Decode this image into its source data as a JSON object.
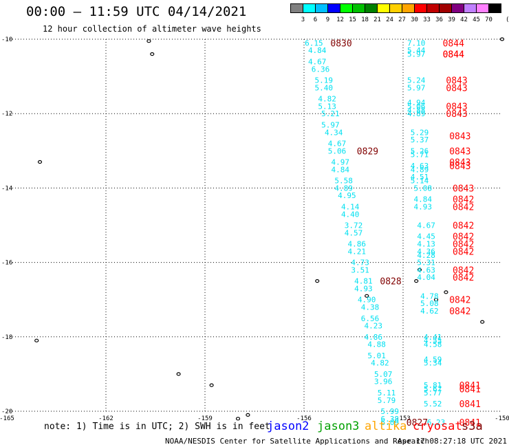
{
  "header": {
    "title": "00:00 – 11:59 UTC 04/14/2021",
    "subtitle": "12 hour collection of altimeter wave heights"
  },
  "legend": {
    "colors": [
      "#808080",
      "#00ffff",
      "#00bfff",
      "#0000ff",
      "#00ff00",
      "#00c000",
      "#008000",
      "#ffff00",
      "#ffd000",
      "#ffa500",
      "#ff0000",
      "#c00000",
      "#a00000",
      "#800080",
      "#c080ff",
      "#ff80ff",
      "#000000"
    ],
    "labels": [
      "3",
      "6",
      "9",
      "12",
      "15",
      "18",
      "21",
      "24",
      "27",
      "30",
      "33",
      "36",
      "39",
      "42",
      "45",
      "70"
    ],
    "unit": "(ft)"
  },
  "map": {
    "lon_labels": [
      "-165",
      "-162",
      "-159",
      "-156",
      "-153",
      "-150"
    ],
    "lat_labels": [
      "-10",
      "-12",
      "-14",
      "-16",
      "-18",
      "-20"
    ],
    "track_a": [
      {
        "lat": -10.1,
        "lon": -155.7,
        "swh": "6.15"
      },
      {
        "lat": -10.3,
        "lon": -155.6,
        "swh": "4.84"
      },
      {
        "lat": -10.6,
        "lon": -155.6,
        "swh": "4.67"
      },
      {
        "lat": -10.8,
        "lon": -155.5,
        "swh": "6.36"
      },
      {
        "lat": -11.1,
        "lon": -155.4,
        "swh": "5.19"
      },
      {
        "lat": -11.3,
        "lon": -155.4,
        "swh": "5.40"
      },
      {
        "lat": -11.6,
        "lon": -155.3,
        "swh": "4.82"
      },
      {
        "lat": -11.8,
        "lon": -155.3,
        "swh": "5.13"
      },
      {
        "lat": -12.0,
        "lon": -155.2,
        "swh": "5.21"
      },
      {
        "lat": -12.3,
        "lon": -155.2,
        "swh": "5.97"
      },
      {
        "lat": -12.5,
        "lon": -155.1,
        "swh": "4.34"
      },
      {
        "lat": -12.8,
        "lon": -155.0,
        "swh": "4.67"
      },
      {
        "lat": -13.0,
        "lon": -155.0,
        "swh": "5.06"
      },
      {
        "lat": -13.3,
        "lon": -154.9,
        "swh": "4.97"
      },
      {
        "lat": -13.5,
        "lon": -154.9,
        "swh": "4.84"
      },
      {
        "lat": -13.8,
        "lon": -154.8,
        "swh": "5.58"
      },
      {
        "lat": -14.0,
        "lon": -154.8,
        "swh": "4.89"
      },
      {
        "lat": -14.2,
        "lon": -154.7,
        "swh": "4.95"
      },
      {
        "lat": -14.5,
        "lon": -154.6,
        "swh": "4.14"
      },
      {
        "lat": -14.7,
        "lon": -154.6,
        "swh": "4.40"
      },
      {
        "lat": -15.0,
        "lon": -154.5,
        "swh": "3.72"
      },
      {
        "lat": -15.2,
        "lon": -154.5,
        "swh": "4.57"
      },
      {
        "lat": -15.5,
        "lon": -154.4,
        "swh": "4.86"
      },
      {
        "lat": -15.7,
        "lon": -154.4,
        "swh": "4.21"
      },
      {
        "lat": -16.0,
        "lon": -154.3,
        "swh": "4.73"
      },
      {
        "lat": -16.2,
        "lon": -154.3,
        "swh": "3.51"
      },
      {
        "lat": -16.5,
        "lon": -154.2,
        "swh": "4.81"
      },
      {
        "lat": -16.7,
        "lon": -154.2,
        "swh": "4.93"
      },
      {
        "lat": -17.0,
        "lon": -154.1,
        "swh": "4.90"
      },
      {
        "lat": -17.2,
        "lon": -154.0,
        "swh": "4.38"
      },
      {
        "lat": -17.5,
        "lon": -154.0,
        "swh": "6.56"
      },
      {
        "lat": -17.7,
        "lon": -153.9,
        "swh": "4.23"
      },
      {
        "lat": -18.0,
        "lon": -153.9,
        "swh": "4.86"
      },
      {
        "lat": -18.2,
        "lon": -153.8,
        "swh": "4.88"
      },
      {
        "lat": -18.5,
        "lon": -153.8,
        "swh": "5.01"
      },
      {
        "lat": -18.7,
        "lon": -153.7,
        "swh": "4.82"
      },
      {
        "lat": -19.0,
        "lon": -153.6,
        "swh": "5.07"
      },
      {
        "lat": -19.2,
        "lon": -153.6,
        "swh": "3.96"
      },
      {
        "lat": -19.5,
        "lon": -153.5,
        "swh": "5.11"
      },
      {
        "lat": -19.7,
        "lon": -153.5,
        "swh": "5.79"
      },
      {
        "lat": -20.0,
        "lon": -153.4,
        "swh": "5.99"
      },
      {
        "lat": -20.2,
        "lon": -153.4,
        "swh": "6.38"
      },
      {
        "lat": -20.3,
        "lon": -153.4,
        "swh": "6.09"
      }
    ],
    "time_a": [
      {
        "lat": -10.1,
        "lon": -155.2,
        "text": "0830"
      },
      {
        "lat": -13.0,
        "lon": -154.4,
        "text": "0829"
      },
      {
        "lat": -16.5,
        "lon": -153.7,
        "text": "0828"
      },
      {
        "lat": -20.3,
        "lon": -152.9,
        "text": "0827"
      }
    ],
    "track_b": [
      {
        "lat": -10.1,
        "lon": -152.6,
        "swh": "7.10"
      },
      {
        "lat": -10.3,
        "lon": -152.6,
        "swh": "5.44"
      },
      {
        "lat": -10.4,
        "lon": -152.6,
        "swh": "5.97"
      },
      {
        "lat": -11.1,
        "lon": -152.6,
        "swh": "5.24"
      },
      {
        "lat": -11.3,
        "lon": -152.6,
        "swh": "5.97"
      },
      {
        "lat": -11.7,
        "lon": -152.6,
        "swh": "4.94"
      },
      {
        "lat": -11.8,
        "lon": -152.6,
        "swh": "5.06"
      },
      {
        "lat": -11.9,
        "lon": -152.6,
        "swh": "4.88"
      },
      {
        "lat": -12.0,
        "lon": -152.6,
        "swh": "4.89"
      },
      {
        "lat": -12.5,
        "lon": -152.5,
        "swh": "5.29"
      },
      {
        "lat": -12.7,
        "lon": -152.5,
        "swh": "5.37"
      },
      {
        "lat": -13.0,
        "lon": -152.5,
        "swh": "5.26"
      },
      {
        "lat": -13.1,
        "lon": -152.5,
        "swh": "5.71"
      },
      {
        "lat": -13.4,
        "lon": -152.5,
        "swh": "4.63"
      },
      {
        "lat": -13.5,
        "lon": -152.5,
        "swh": "4.89"
      },
      {
        "lat": -13.7,
        "lon": -152.5,
        "swh": "4.51"
      },
      {
        "lat": -13.8,
        "lon": -152.5,
        "swh": "5.14"
      },
      {
        "lat": -14.0,
        "lon": -152.4,
        "swh": "5.08"
      },
      {
        "lat": -14.3,
        "lon": -152.4,
        "swh": "4.84"
      },
      {
        "lat": -14.5,
        "lon": -152.4,
        "swh": "4.93"
      },
      {
        "lat": -15.0,
        "lon": -152.3,
        "swh": "4.67"
      },
      {
        "lat": -15.3,
        "lon": -152.3,
        "swh": "4.45"
      },
      {
        "lat": -15.5,
        "lon": -152.3,
        "swh": "4.13"
      },
      {
        "lat": -15.7,
        "lon": -152.3,
        "swh": "4.36"
      },
      {
        "lat": -15.8,
        "lon": -152.3,
        "swh": "4.28"
      },
      {
        "lat": -16.0,
        "lon": -152.3,
        "swh": "5.31"
      },
      {
        "lat": -16.2,
        "lon": -152.3,
        "swh": "4.63"
      },
      {
        "lat": -16.4,
        "lon": -152.3,
        "swh": "4.04"
      },
      {
        "lat": -16.9,
        "lon": -152.2,
        "swh": "4.78"
      },
      {
        "lat": -17.1,
        "lon": -152.2,
        "swh": "5.08"
      },
      {
        "lat": -17.3,
        "lon": -152.2,
        "swh": "4.62"
      },
      {
        "lat": -18.0,
        "lon": -152.1,
        "swh": "4.41"
      },
      {
        "lat": -18.1,
        "lon": -152.1,
        "swh": "4.55"
      },
      {
        "lat": -18.2,
        "lon": -152.1,
        "swh": "4.58"
      },
      {
        "lat": -18.6,
        "lon": -152.1,
        "swh": "4.59"
      },
      {
        "lat": -18.7,
        "lon": -152.1,
        "swh": "5.34"
      },
      {
        "lat": -19.3,
        "lon": -152.1,
        "swh": "5.81"
      },
      {
        "lat": -19.4,
        "lon": -152.1,
        "swh": "5.67"
      },
      {
        "lat": -19.5,
        "lon": -152.1,
        "swh": "5.77"
      },
      {
        "lat": -19.8,
        "lon": -152.1,
        "swh": "5.52"
      },
      {
        "lat": -20.3,
        "lon": -152.0,
        "swh": "6.23"
      }
    ],
    "time_b": [
      {
        "lat": -10.1,
        "lon": -151.8,
        "text": "0844"
      },
      {
        "lat": -10.4,
        "lon": -151.8,
        "text": "0844"
      },
      {
        "lat": -10.4,
        "lon": -151.8,
        "text": "0844"
      },
      {
        "lat": -11.1,
        "lon": -151.7,
        "text": "0843"
      },
      {
        "lat": -11.3,
        "lon": -151.7,
        "text": "0843"
      },
      {
        "lat": -11.8,
        "lon": -151.7,
        "text": "0843"
      },
      {
        "lat": -12.0,
        "lon": -151.7,
        "text": "0843"
      },
      {
        "lat": -12.6,
        "lon": -151.6,
        "text": "0843"
      },
      {
        "lat": -13.0,
        "lon": -151.6,
        "text": "0843"
      },
      {
        "lat": -13.3,
        "lon": -151.6,
        "text": "0843"
      },
      {
        "lat": -13.4,
        "lon": -151.6,
        "text": "0843"
      },
      {
        "lat": -14.0,
        "lon": -151.5,
        "text": "0843"
      },
      {
        "lat": -14.3,
        "lon": -151.5,
        "text": "0842"
      },
      {
        "lat": -14.5,
        "lon": -151.5,
        "text": "0842"
      },
      {
        "lat": -15.0,
        "lon": -151.5,
        "text": "0842"
      },
      {
        "lat": -15.3,
        "lon": -151.5,
        "text": "0842"
      },
      {
        "lat": -15.5,
        "lon": -151.5,
        "text": "0842"
      },
      {
        "lat": -15.7,
        "lon": -151.5,
        "text": "0842"
      },
      {
        "lat": -16.2,
        "lon": -151.5,
        "text": "0842"
      },
      {
        "lat": -16.4,
        "lon": -151.5,
        "text": "0842"
      },
      {
        "lat": -17.0,
        "lon": -151.6,
        "text": "0842"
      },
      {
        "lat": -17.3,
        "lon": -151.6,
        "text": "0842"
      },
      {
        "lat": -19.3,
        "lon": -151.3,
        "text": "0841"
      },
      {
        "lat": -19.4,
        "lon": -151.3,
        "text": "0841"
      },
      {
        "lat": -19.8,
        "lon": -151.3,
        "text": "0841"
      },
      {
        "lat": -20.3,
        "lon": -151.3,
        "text": "0841"
      }
    ],
    "islands": [
      {
        "lat": -10.05,
        "lon": -160.7
      },
      {
        "lat": -10.4,
        "lon": -160.6
      },
      {
        "lat": -13.3,
        "lon": -164.0
      },
      {
        "lat": -16.5,
        "lon": -155.6
      },
      {
        "lat": -16.9,
        "lon": -154.1
      },
      {
        "lat": -16.2,
        "lon": -152.5
      },
      {
        "lat": -16.5,
        "lon": -152.6
      },
      {
        "lat": -16.8,
        "lon": -151.7
      },
      {
        "lat": -17.0,
        "lon": -152.0
      },
      {
        "lat": -18.1,
        "lon": -164.1
      },
      {
        "lat": -19.0,
        "lon": -159.8
      },
      {
        "lat": -19.3,
        "lon": -158.8
      },
      {
        "lat": -20.1,
        "lon": -157.7
      },
      {
        "lat": -20.2,
        "lon": -158.0
      },
      {
        "lat": -17.6,
        "lon": -150.6
      },
      {
        "lat": -10.0,
        "lon": -150.0
      }
    ]
  },
  "footer": {
    "note": "note: 1) Time is in UTC; 2) SWH is in feet",
    "satellites": [
      {
        "name": "jason2",
        "color": "#0000ff"
      },
      {
        "name": "jason3",
        "color": "#00a000"
      },
      {
        "name": "altika",
        "color": "#ffa500"
      },
      {
        "name": "cryosat",
        "color": "#ff0000"
      },
      {
        "name": "s3a",
        "color": "#800000"
      }
    ],
    "credit": "NOAA/NESDIS Center for Satellite Applications and Research",
    "timestamp": "Apr 17 08:27:18 UTC 2021"
  },
  "colors": {
    "swh_label": "#00e0f0",
    "time_a": "#800000",
    "time_b": "#ff0000"
  }
}
